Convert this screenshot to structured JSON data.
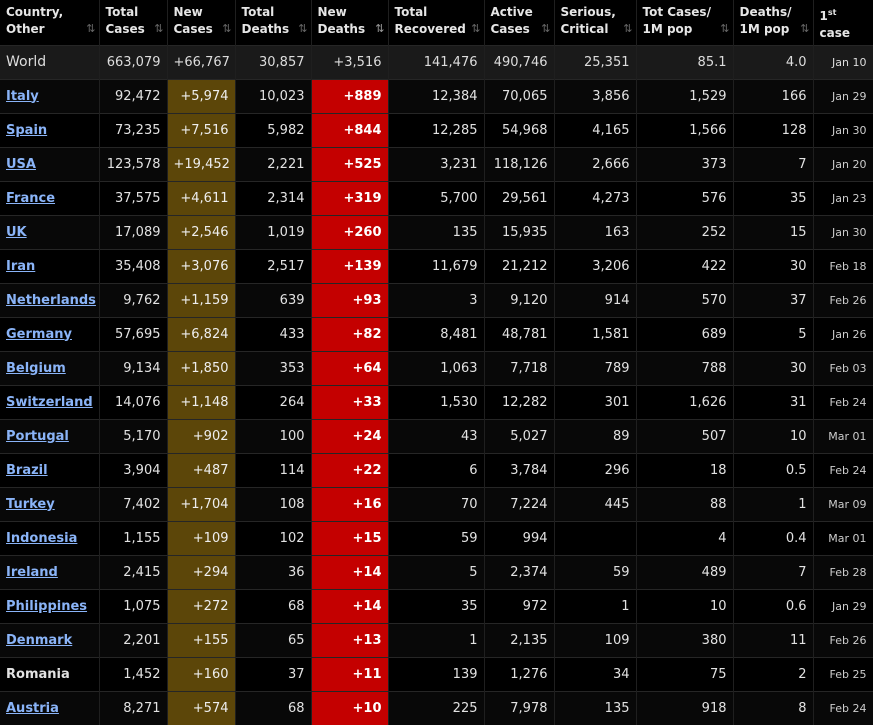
{
  "headers": [
    {
      "l1": "Country,",
      "l2": "Other",
      "sort": "⇅"
    },
    {
      "l1": "Total",
      "l2": "Cases",
      "sort": "⇅"
    },
    {
      "l1": "New",
      "l2": "Cases",
      "sort": "⇅"
    },
    {
      "l1": "Total",
      "l2": "Deaths",
      "sort": "⇅"
    },
    {
      "l1": "New",
      "l2": "Deaths",
      "sort": "⇅"
    },
    {
      "l1": "Total",
      "l2": "Recovered",
      "sort": "⇅"
    },
    {
      "l1": "Active",
      "l2": "Cases",
      "sort": "⇅"
    },
    {
      "l1": "Serious,",
      "l2": "Critical",
      "sort": "⇅"
    },
    {
      "l1": "Tot Cases/",
      "l2": "1M pop",
      "sort": "⇅"
    },
    {
      "l1": "Deaths/",
      "l2": "1M pop",
      "sort": "⇅"
    },
    {
      "l1": "1",
      "sup": "st",
      "l2": "case",
      "sort": ""
    }
  ],
  "world": {
    "country": "World",
    "total_cases": "663,079",
    "new_cases": "+66,767",
    "total_deaths": "30,857",
    "new_deaths": "+3,516",
    "total_recovered": "141,476",
    "active_cases": "490,746",
    "serious": "25,351",
    "cases_per_1m": "85.1",
    "deaths_per_1m": "4.0",
    "first_case": "Jan 10"
  },
  "rows": [
    {
      "country": "Italy",
      "link": true,
      "total_cases": "92,472",
      "new_cases": "+5,974",
      "total_deaths": "10,023",
      "new_deaths": "+889",
      "total_recovered": "12,384",
      "active_cases": "70,065",
      "serious": "3,856",
      "cases_per_1m": "1,529",
      "deaths_per_1m": "166",
      "first_case": "Jan 29"
    },
    {
      "country": "Spain",
      "link": true,
      "total_cases": "73,235",
      "new_cases": "+7,516",
      "total_deaths": "5,982",
      "new_deaths": "+844",
      "total_recovered": "12,285",
      "active_cases": "54,968",
      "serious": "4,165",
      "cases_per_1m": "1,566",
      "deaths_per_1m": "128",
      "first_case": "Jan 30"
    },
    {
      "country": "USA",
      "link": true,
      "total_cases": "123,578",
      "new_cases": "+19,452",
      "total_deaths": "2,221",
      "new_deaths": "+525",
      "total_recovered": "3,231",
      "active_cases": "118,126",
      "serious": "2,666",
      "cases_per_1m": "373",
      "deaths_per_1m": "7",
      "first_case": "Jan 20"
    },
    {
      "country": "France",
      "link": true,
      "total_cases": "37,575",
      "new_cases": "+4,611",
      "total_deaths": "2,314",
      "new_deaths": "+319",
      "total_recovered": "5,700",
      "active_cases": "29,561",
      "serious": "4,273",
      "cases_per_1m": "576",
      "deaths_per_1m": "35",
      "first_case": "Jan 23"
    },
    {
      "country": "UK",
      "link": true,
      "total_cases": "17,089",
      "new_cases": "+2,546",
      "total_deaths": "1,019",
      "new_deaths": "+260",
      "total_recovered": "135",
      "active_cases": "15,935",
      "serious": "163",
      "cases_per_1m": "252",
      "deaths_per_1m": "15",
      "first_case": "Jan 30"
    },
    {
      "country": "Iran",
      "link": true,
      "total_cases": "35,408",
      "new_cases": "+3,076",
      "total_deaths": "2,517",
      "new_deaths": "+139",
      "total_recovered": "11,679",
      "active_cases": "21,212",
      "serious": "3,206",
      "cases_per_1m": "422",
      "deaths_per_1m": "30",
      "first_case": "Feb 18"
    },
    {
      "country": "Netherlands",
      "link": true,
      "total_cases": "9,762",
      "new_cases": "+1,159",
      "total_deaths": "639",
      "new_deaths": "+93",
      "total_recovered": "3",
      "active_cases": "9,120",
      "serious": "914",
      "cases_per_1m": "570",
      "deaths_per_1m": "37",
      "first_case": "Feb 26"
    },
    {
      "country": "Germany",
      "link": true,
      "total_cases": "57,695",
      "new_cases": "+6,824",
      "total_deaths": "433",
      "new_deaths": "+82",
      "total_recovered": "8,481",
      "active_cases": "48,781",
      "serious": "1,581",
      "cases_per_1m": "689",
      "deaths_per_1m": "5",
      "first_case": "Jan 26"
    },
    {
      "country": "Belgium",
      "link": true,
      "total_cases": "9,134",
      "new_cases": "+1,850",
      "total_deaths": "353",
      "new_deaths": "+64",
      "total_recovered": "1,063",
      "active_cases": "7,718",
      "serious": "789",
      "cases_per_1m": "788",
      "deaths_per_1m": "30",
      "first_case": "Feb 03"
    },
    {
      "country": "Switzerland",
      "link": true,
      "total_cases": "14,076",
      "new_cases": "+1,148",
      "total_deaths": "264",
      "new_deaths": "+33",
      "total_recovered": "1,530",
      "active_cases": "12,282",
      "serious": "301",
      "cases_per_1m": "1,626",
      "deaths_per_1m": "31",
      "first_case": "Feb 24"
    },
    {
      "country": "Portugal",
      "link": true,
      "total_cases": "5,170",
      "new_cases": "+902",
      "total_deaths": "100",
      "new_deaths": "+24",
      "total_recovered": "43",
      "active_cases": "5,027",
      "serious": "89",
      "cases_per_1m": "507",
      "deaths_per_1m": "10",
      "first_case": "Mar 01"
    },
    {
      "country": "Brazil",
      "link": true,
      "total_cases": "3,904",
      "new_cases": "+487",
      "total_deaths": "114",
      "new_deaths": "+22",
      "total_recovered": "6",
      "active_cases": "3,784",
      "serious": "296",
      "cases_per_1m": "18",
      "deaths_per_1m": "0.5",
      "first_case": "Feb 24"
    },
    {
      "country": "Turkey",
      "link": true,
      "total_cases": "7,402",
      "new_cases": "+1,704",
      "total_deaths": "108",
      "new_deaths": "+16",
      "total_recovered": "70",
      "active_cases": "7,224",
      "serious": "445",
      "cases_per_1m": "88",
      "deaths_per_1m": "1",
      "first_case": "Mar 09"
    },
    {
      "country": "Indonesia",
      "link": true,
      "total_cases": "1,155",
      "new_cases": "+109",
      "total_deaths": "102",
      "new_deaths": "+15",
      "total_recovered": "59",
      "active_cases": "994",
      "serious": "",
      "cases_per_1m": "4",
      "deaths_per_1m": "0.4",
      "first_case": "Mar 01"
    },
    {
      "country": "Ireland",
      "link": true,
      "total_cases": "2,415",
      "new_cases": "+294",
      "total_deaths": "36",
      "new_deaths": "+14",
      "total_recovered": "5",
      "active_cases": "2,374",
      "serious": "59",
      "cases_per_1m": "489",
      "deaths_per_1m": "7",
      "first_case": "Feb 28"
    },
    {
      "country": "Philippines",
      "link": true,
      "total_cases": "1,075",
      "new_cases": "+272",
      "total_deaths": "68",
      "new_deaths": "+14",
      "total_recovered": "35",
      "active_cases": "972",
      "serious": "1",
      "cases_per_1m": "10",
      "deaths_per_1m": "0.6",
      "first_case": "Jan 29"
    },
    {
      "country": "Denmark",
      "link": true,
      "total_cases": "2,201",
      "new_cases": "+155",
      "total_deaths": "65",
      "new_deaths": "+13",
      "total_recovered": "1",
      "active_cases": "2,135",
      "serious": "109",
      "cases_per_1m": "380",
      "deaths_per_1m": "11",
      "first_case": "Feb 26"
    },
    {
      "country": "Romania",
      "link": false,
      "total_cases": "1,452",
      "new_cases": "+160",
      "total_deaths": "37",
      "new_deaths": "+11",
      "total_recovered": "139",
      "active_cases": "1,276",
      "serious": "34",
      "cases_per_1m": "75",
      "deaths_per_1m": "2",
      "first_case": "Feb 25"
    },
    {
      "country": "Austria",
      "link": true,
      "total_cases": "8,271",
      "new_cases": "+574",
      "total_deaths": "68",
      "new_deaths": "+10",
      "total_recovered": "225",
      "active_cases": "7,978",
      "serious": "135",
      "cases_per_1m": "918",
      "deaths_per_1m": "8",
      "first_case": "Feb 24"
    }
  ],
  "colors": {
    "new_cases_bg": "#5c4609",
    "new_deaths_bg": "#c40000",
    "link": "#8ab4f8"
  }
}
